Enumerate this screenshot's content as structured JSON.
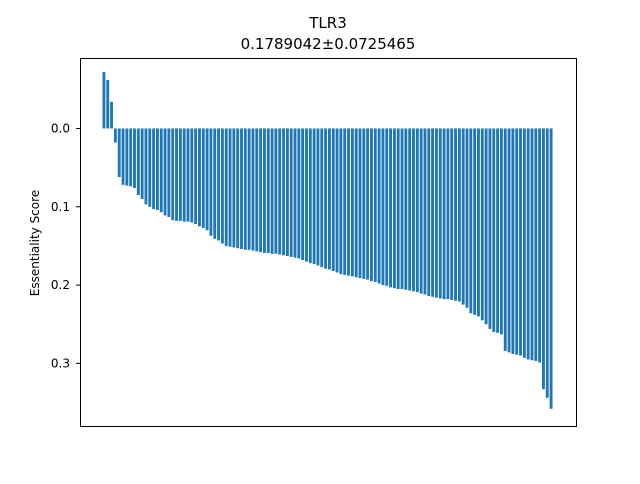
{
  "chart_data": {
    "type": "bar",
    "title": "TLR3",
    "subtitle": "0.1789042±0.0725465",
    "xlabel": "",
    "ylabel": "Essentiality Score",
    "ylim": [
      -0.09,
      0.38
    ],
    "y_inverted": true,
    "yticks": [
      0.0,
      0.1,
      0.2,
      0.3
    ],
    "ytick_labels": [
      "0.0",
      "0.1",
      "0.2",
      "0.3"
    ],
    "grid": false,
    "legend": "none",
    "bar_color": "#1f77b4",
    "values": [
      -0.072,
      -0.062,
      -0.034,
      0.018,
      0.062,
      0.072,
      0.073,
      0.074,
      0.076,
      0.085,
      0.09,
      0.097,
      0.1,
      0.103,
      0.104,
      0.107,
      0.111,
      0.113,
      0.117,
      0.118,
      0.118,
      0.119,
      0.119,
      0.12,
      0.122,
      0.125,
      0.127,
      0.13,
      0.137,
      0.141,
      0.143,
      0.147,
      0.15,
      0.151,
      0.152,
      0.153,
      0.154,
      0.155,
      0.155,
      0.156,
      0.157,
      0.158,
      0.159,
      0.159,
      0.16,
      0.16,
      0.161,
      0.162,
      0.163,
      0.164,
      0.165,
      0.166,
      0.168,
      0.17,
      0.172,
      0.173,
      0.175,
      0.177,
      0.179,
      0.18,
      0.182,
      0.184,
      0.186,
      0.187,
      0.188,
      0.189,
      0.19,
      0.191,
      0.192,
      0.193,
      0.195,
      0.196,
      0.198,
      0.2,
      0.201,
      0.203,
      0.204,
      0.205,
      0.205,
      0.206,
      0.207,
      0.208,
      0.209,
      0.211,
      0.212,
      0.214,
      0.215,
      0.216,
      0.217,
      0.218,
      0.218,
      0.219,
      0.22,
      0.221,
      0.225,
      0.229,
      0.236,
      0.238,
      0.24,
      0.245,
      0.25,
      0.256,
      0.26,
      0.261,
      0.263,
      0.284,
      0.286,
      0.288,
      0.289,
      0.29,
      0.293,
      0.295,
      0.296,
      0.297,
      0.299,
      0.333,
      0.344,
      0.358
    ]
  }
}
